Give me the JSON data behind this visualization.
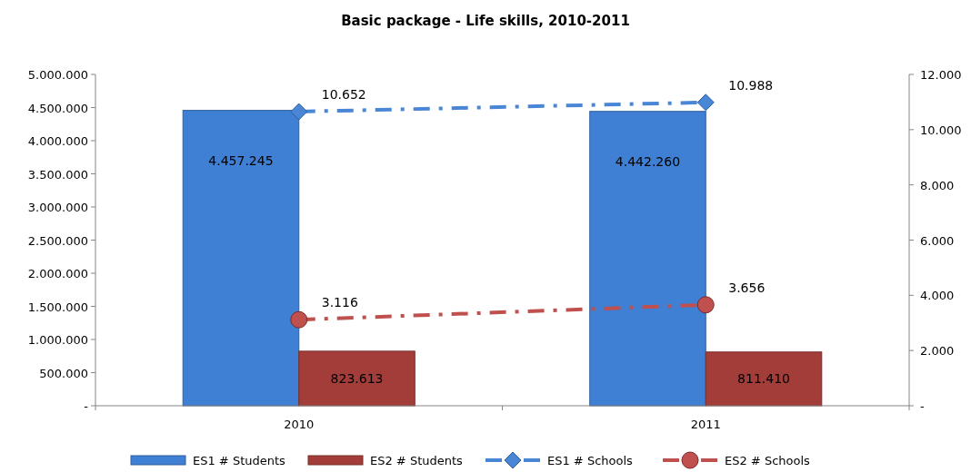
{
  "chart_data": {
    "type": "bar",
    "title": "Basic package - Life skills, 2010-2011",
    "categories": [
      "2010",
      "2011"
    ],
    "series": [
      {
        "name": "ES1 # Students",
        "color": "#3f7fd4",
        "values": [
          4457245,
          4442260
        ],
        "value_labels": [
          "4.457.245",
          "4.442.260"
        ]
      },
      {
        "name": "ES2 # Students",
        "color": "#a23d3a",
        "values": [
          823613,
          811410
        ],
        "value_labels": [
          "823.613",
          "811.410"
        ]
      },
      {
        "name": "ES1 # Schools",
        "type": "line",
        "axis": "y2",
        "color": "#4a86d6",
        "values": [
          10652,
          10988
        ],
        "value_labels": [
          "10.652",
          "10.988"
        ],
        "marker": "diamond",
        "line_style": "dashed"
      },
      {
        "name": "ES2 # Schools",
        "type": "line",
        "axis": "y2",
        "color": "#c0504d",
        "values": [
          3116,
          3656
        ],
        "value_labels": [
          "3.116",
          "3.656"
        ],
        "marker": "circle",
        "line_style": "dashed"
      }
    ],
    "ylim": [
      0,
      5000000
    ],
    "yticks": [
      {
        "value": 0,
        "label": "-"
      },
      {
        "value": 500000,
        "label": "500.000"
      },
      {
        "value": 1000000,
        "label": "1.000.000"
      },
      {
        "value": 1500000,
        "label": "1.500.000"
      },
      {
        "value": 2000000,
        "label": "2.000.000"
      },
      {
        "value": 2500000,
        "label": "2.500.000"
      },
      {
        "value": 3000000,
        "label": "3.000.000"
      },
      {
        "value": 3500000,
        "label": "3.500.000"
      },
      {
        "value": 4000000,
        "label": "4.000.000"
      },
      {
        "value": 4500000,
        "label": "4.500.000"
      },
      {
        "value": 5000000,
        "label": "5.000.000"
      }
    ],
    "y2lim": [
      0,
      12000
    ],
    "y2ticks": [
      {
        "value": 0,
        "label": "-"
      },
      {
        "value": 2000,
        "label": "2.000"
      },
      {
        "value": 4000,
        "label": "4.000"
      },
      {
        "value": 6000,
        "label": "6.000"
      },
      {
        "value": 8000,
        "label": "8.000"
      },
      {
        "value": 10000,
        "label": "10.000"
      },
      {
        "value": 12000,
        "label": "12.000"
      }
    ],
    "grid": false,
    "legend": "bottom"
  }
}
